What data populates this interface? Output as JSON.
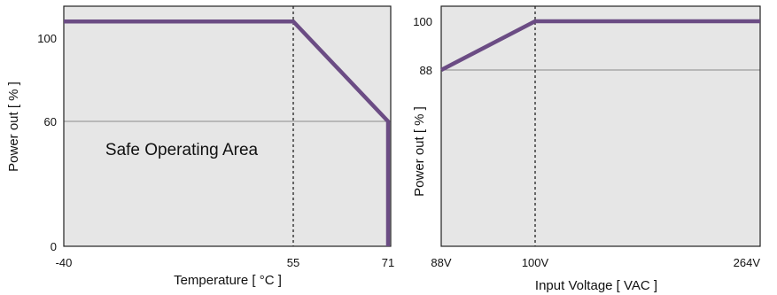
{
  "chart_data": [
    {
      "type": "line",
      "title": "",
      "xlabel": "Temperature [ °C ]",
      "ylabel": "Power out [ % ]",
      "xlim": [
        -40,
        71
      ],
      "ylim": [
        0,
        110
      ],
      "x_ticks": [
        "-40",
        "55",
        "71"
      ],
      "y_ticks": [
        "0",
        "60",
        "100"
      ],
      "series": [
        {
          "points": [
            [
              -40,
              108
            ],
            [
              55,
              108
            ],
            [
              71,
              60
            ],
            [
              71,
              0
            ]
          ]
        }
      ],
      "reference_lines": {
        "vertical": [
          55
        ],
        "horizontal": [
          60
        ]
      },
      "annotation": "Safe Operating Area",
      "line_color": "#6b4c84",
      "fill_color": "#e6e6e6"
    },
    {
      "type": "line",
      "title": "",
      "xlabel": "Input Voltage [ VAC ]",
      "ylabel": "Power out [ % ]",
      "xlim": [
        88,
        264
      ],
      "ylim": [
        55,
        105
      ],
      "x_ticks": [
        "88V",
        "100V",
        "264V"
      ],
      "y_ticks": [
        "88",
        "100"
      ],
      "series": [
        {
          "points": [
            [
              88,
              88
            ],
            [
              100,
              100
            ],
            [
              264,
              100
            ]
          ]
        }
      ],
      "reference_lines": {
        "vertical": [
          100
        ],
        "horizontal": [
          88
        ]
      },
      "line_color": "#6b4c84",
      "fill_color": "#e6e6e6"
    }
  ]
}
